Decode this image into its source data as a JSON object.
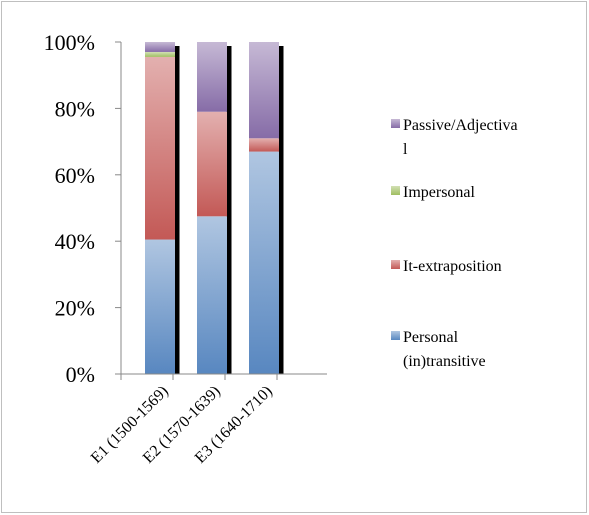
{
  "chart_data": {
    "type": "bar",
    "stacked": true,
    "percent": true,
    "title": "",
    "xlabel": "",
    "ylabel": "",
    "ylim": [
      0,
      100
    ],
    "ytick_labels": [
      "0%",
      "20%",
      "40%",
      "60%",
      "80%",
      "100%"
    ],
    "categories": [
      "E1 (1500-1569)",
      "E2 (1570-1639)",
      "E3 (1640-1710)"
    ],
    "series": [
      {
        "name": "Personal (in)transitive",
        "color": "#4f81bd",
        "values": [
          40.5,
          47.5,
          67
        ]
      },
      {
        "name": "It-extraposition",
        "color": "#c0504d",
        "values": [
          55,
          31.5,
          4
        ]
      },
      {
        "name": "Impersonal",
        "color": "#9bbb59",
        "values": [
          1.5,
          0,
          0
        ]
      },
      {
        "name": "Passive/Adjectival",
        "color": "#8064a2",
        "values": [
          3,
          21,
          29
        ]
      }
    ],
    "legend": {
      "position": "right",
      "order": [
        3,
        2,
        1,
        0
      ],
      "lines": [
        [
          "Passive/Adjectiva",
          "l"
        ],
        [
          "Impersonal"
        ],
        [
          "It-extraposition"
        ],
        [
          "Personal",
          "(in)transitive"
        ]
      ]
    },
    "grid": false
  }
}
